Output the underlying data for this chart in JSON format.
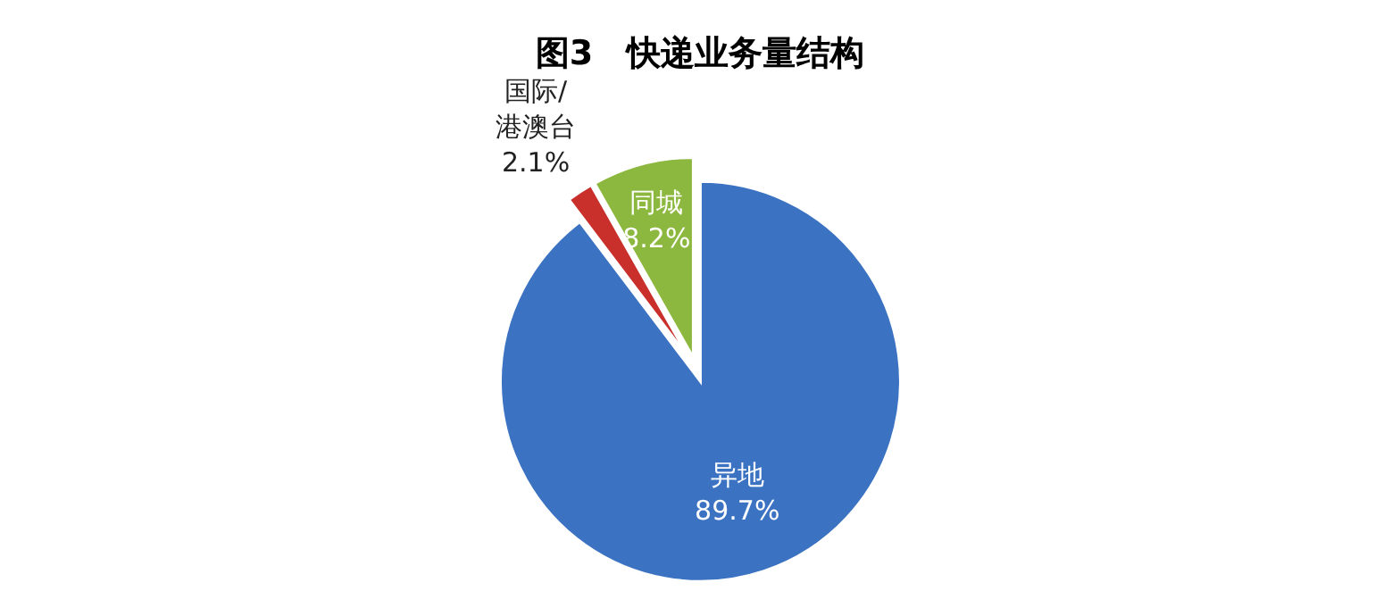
{
  "chart_data": {
    "type": "pie",
    "title": "图3　快递业务量结构",
    "categories": [
      "异地",
      "国际/港澳台",
      "同城"
    ],
    "values": [
      89.7,
      2.1,
      8.2
    ],
    "colors": [
      "#3b73c2",
      "#c9302c",
      "#8db83f"
    ],
    "value_labels": [
      "89.7%",
      "2.1%",
      "8.2%"
    ],
    "legend": false
  }
}
